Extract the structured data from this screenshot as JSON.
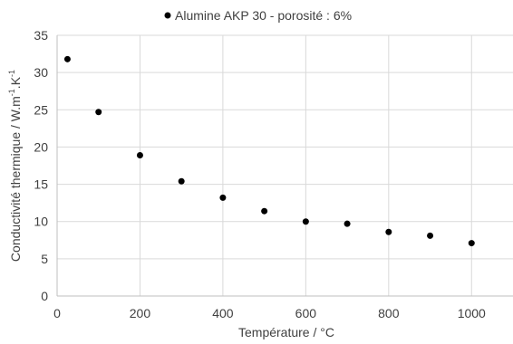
{
  "chart_data": {
    "type": "scatter",
    "legend": {
      "position": "top",
      "marker_color": "#000000"
    },
    "series": [
      {
        "name": "Alumine AKP 30 - porosité : 6%",
        "color": "#000000",
        "x": [
          25,
          100,
          200,
          300,
          400,
          500,
          600,
          700,
          800,
          900,
          1000
        ],
        "y": [
          31.8,
          24.7,
          18.9,
          15.4,
          13.2,
          11.4,
          10.0,
          9.7,
          8.6,
          8.1,
          7.1
        ]
      }
    ],
    "xlabel": "Température / °C",
    "ylabel": "Conductivité thermique / W.m",
    "ylabel_sup1": "-1",
    "ylabel_mid": ".K",
    "ylabel_sup2": "-1",
    "xlim": [
      0,
      1100
    ],
    "ylim": [
      0,
      35
    ],
    "xticks": [
      "0",
      "200",
      "400",
      "600",
      "800",
      "1000"
    ],
    "yticks": [
      "0",
      "5",
      "10",
      "15",
      "20",
      "25",
      "30",
      "35"
    ],
    "grid": true,
    "grid_color": "#d9d9d9",
    "axis_color": "#bfbfbf"
  }
}
